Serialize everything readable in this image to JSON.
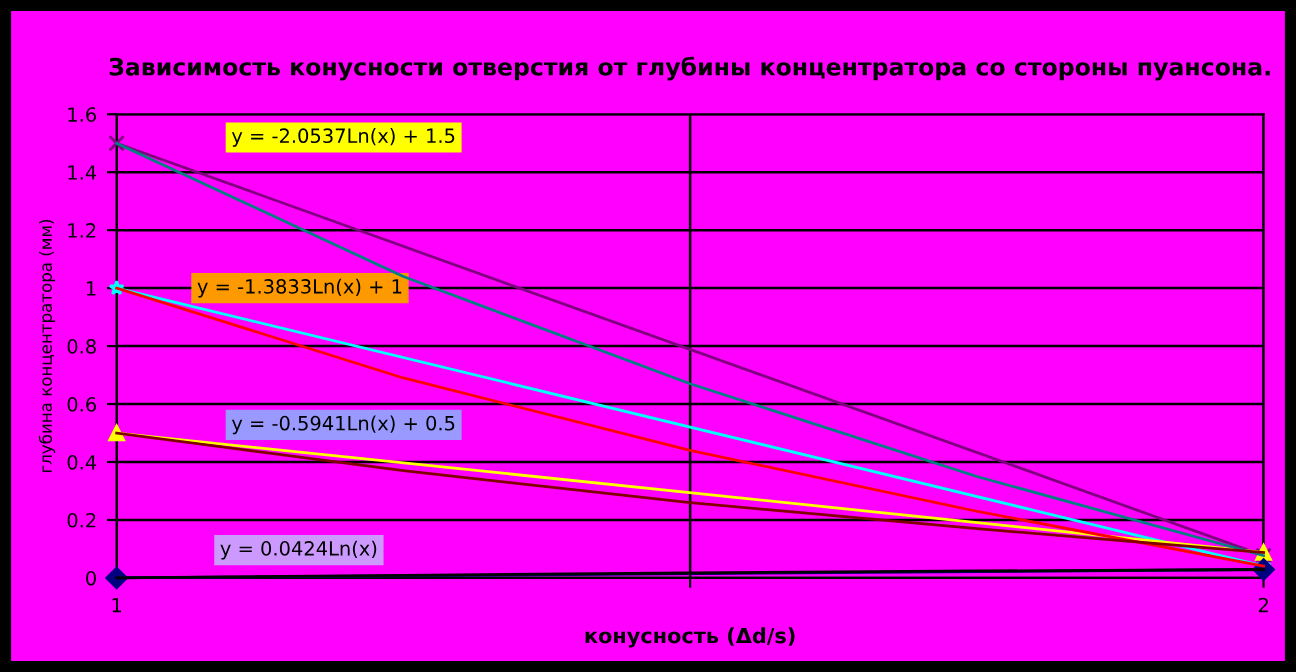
{
  "chart_data": {
    "type": "line",
    "title": "Зависимость конусности отверстия от глубины концентратора со стороны пуансона.",
    "xlabel": "конусность (Δd/s)",
    "ylabel": "глубина концентратора (мм)",
    "xlim": [
      1,
      2
    ],
    "xticks": [
      1,
      {
        "value": 1.5,
        "label": null
      },
      2
    ],
    "ylim": [
      0,
      1.6
    ],
    "yticks": [
      0,
      0.2,
      0.4,
      0.6,
      0.8,
      1,
      1.2,
      1.4,
      1.6
    ],
    "grid": true,
    "legend": false,
    "series": [
      {
        "color": "#800080",
        "marker": "cross",
        "x": [
          1,
          2
        ],
        "values": [
          1.5,
          0.077
        ]
      },
      {
        "color": "#00ffff",
        "marker": "star",
        "x": [
          1,
          2
        ],
        "values": [
          1.0,
          0.041
        ]
      },
      {
        "color": "#ffff00",
        "marker": "triangle",
        "x": [
          1,
          2
        ],
        "values": [
          0.5,
          0.088
        ]
      },
      {
        "color": "#000080",
        "marker": "diamond",
        "x": [
          1,
          2
        ],
        "values": [
          0.0,
          0.029
        ]
      },
      {
        "color": "#008080",
        "marker": "none",
        "x": [
          1,
          1.25,
          1.5,
          1.75,
          2
        ],
        "values": [
          1.5,
          1.04,
          0.67,
          0.35,
          0.077
        ]
      },
      {
        "color": "#ff0000",
        "marker": "none",
        "x": [
          1,
          1.25,
          1.5,
          1.75,
          2
        ],
        "values": [
          1.0,
          0.69,
          0.44,
          0.23,
          0.041
        ]
      },
      {
        "color": "#800000",
        "marker": "none",
        "x": [
          1,
          1.25,
          1.5,
          1.75,
          2
        ],
        "values": [
          0.5,
          0.37,
          0.26,
          0.17,
          0.088
        ]
      },
      {
        "color": "#000000",
        "marker": "none",
        "x": [
          1,
          1.25,
          1.5,
          1.75,
          2
        ],
        "values": [
          0.0,
          0.009,
          0.017,
          0.024,
          0.029
        ]
      }
    ],
    "annotations": [
      "y = -2.0537Ln(x) + 1.5",
      "y = -1.3833Ln(x) + 1",
      "y = -0.5941Ln(x) + 0.5",
      "y = 0.0424Ln(x)"
    ]
  }
}
